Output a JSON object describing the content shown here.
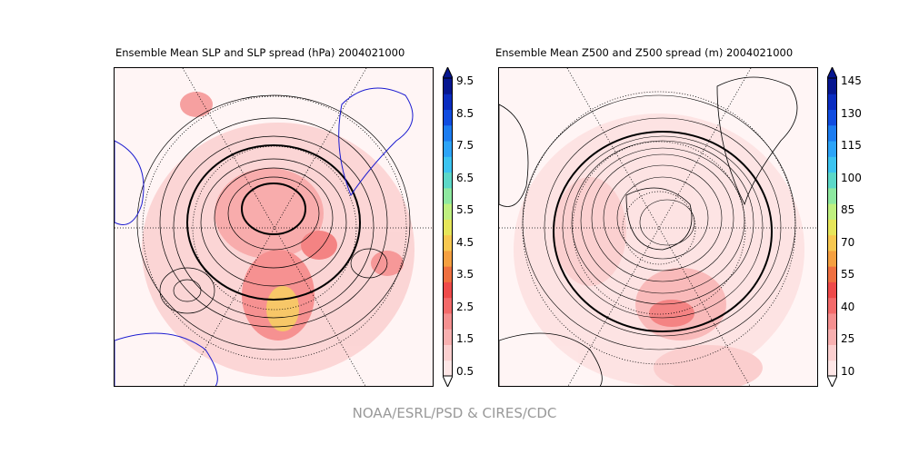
{
  "credit": "NOAA/ESRL/PSD & CIRES/CDC",
  "panels": [
    {
      "title": "Ensemble Mean SLP and SLP spread (hPa) 2004021000",
      "colorbar": {
        "ticks": [
          "9.5",
          "8.5",
          "7.5",
          "6.5",
          "5.5",
          "4.5",
          "3.5",
          "2.5",
          "1.5",
          "0.5"
        ],
        "min": 0.5,
        "max": 9.5
      }
    },
    {
      "title": "Ensemble Mean Z500 and Z500 spread (m) 2004021000",
      "colorbar": {
        "ticks": [
          "145",
          "130",
          "115",
          "100",
          "85",
          "70",
          "55",
          "40",
          "25",
          "10"
        ],
        "min": 10,
        "max": 145
      }
    }
  ],
  "colors": [
    "#fde6e6",
    "#fbcfcf",
    "#f8b0b0",
    "#f59090",
    "#f36a6a",
    "#ee4a4a",
    "#ef7040",
    "#f5a040",
    "#f7c850",
    "#e6e65a",
    "#bff080",
    "#8ee8a0",
    "#5cd8c8",
    "#3cc4f0",
    "#2ca4f8",
    "#1c7cf0",
    "#104ce0",
    "#0a2cc0",
    "#061690"
  ]
}
